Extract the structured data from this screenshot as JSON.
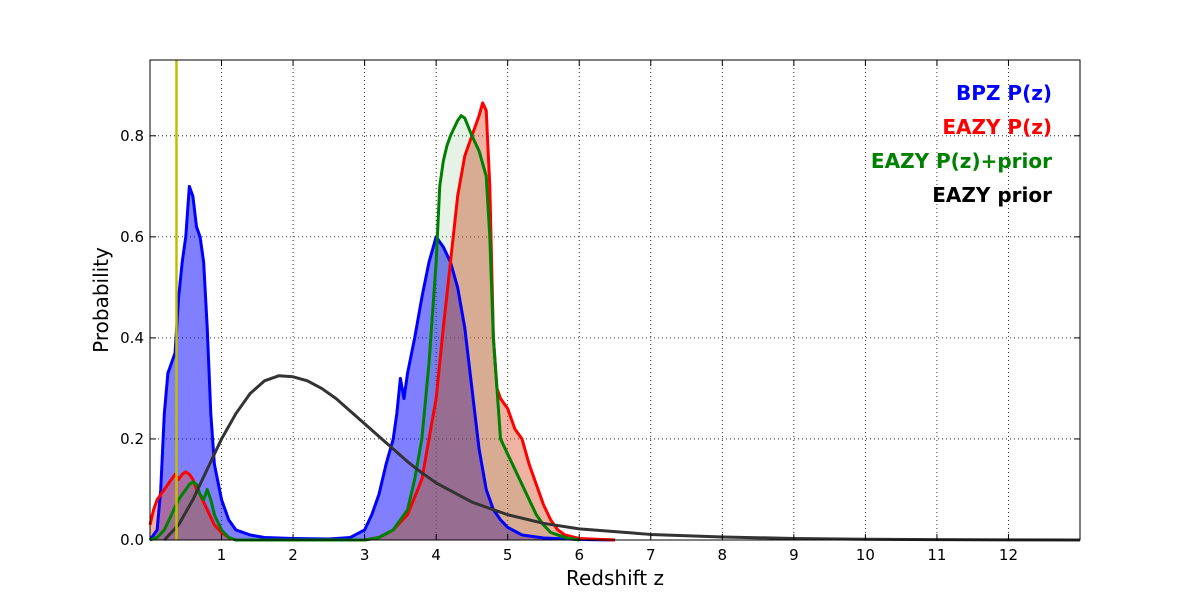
{
  "chart_data": {
    "type": "area",
    "title": "",
    "xlabel": "Redshift z",
    "ylabel": "Probability",
    "xlim": [
      0,
      13
    ],
    "ylim": [
      0,
      0.95
    ],
    "xticks": [
      1,
      2,
      3,
      4,
      5,
      6,
      7,
      8,
      9,
      10,
      11,
      12
    ],
    "xtick_labels": [
      "1",
      "2",
      "3",
      "4",
      "5",
      "6",
      "7",
      "8",
      "9",
      "10",
      "11",
      "12"
    ],
    "yticks": [
      0.0,
      0.2,
      0.4,
      0.6,
      0.8
    ],
    "ytick_labels": [
      "0.0",
      "0.2",
      "0.4",
      "0.6",
      "0.8"
    ],
    "grid": true,
    "legend_position": "top-right",
    "vline": {
      "x": 0.37,
      "color": "#bfbf00"
    },
    "series": [
      {
        "name": "BPZ P(z)",
        "color": "#0000ff",
        "fill": "#0000ff",
        "fill_opacity": 0.5,
        "points": [
          [
            0,
            0.0
          ],
          [
            0.1,
            0.02
          ],
          [
            0.15,
            0.1
          ],
          [
            0.2,
            0.25
          ],
          [
            0.25,
            0.33
          ],
          [
            0.3,
            0.35
          ],
          [
            0.35,
            0.37
          ],
          [
            0.4,
            0.48
          ],
          [
            0.45,
            0.55
          ],
          [
            0.5,
            0.6
          ],
          [
            0.55,
            0.7
          ],
          [
            0.6,
            0.68
          ],
          [
            0.65,
            0.62
          ],
          [
            0.7,
            0.6
          ],
          [
            0.75,
            0.55
          ],
          [
            0.8,
            0.42
          ],
          [
            0.85,
            0.25
          ],
          [
            0.9,
            0.15
          ],
          [
            1.0,
            0.08
          ],
          [
            1.1,
            0.04
          ],
          [
            1.2,
            0.02
          ],
          [
            1.4,
            0.01
          ],
          [
            1.6,
            0.005
          ],
          [
            2.0,
            0.003
          ],
          [
            2.5,
            0.002
          ],
          [
            2.8,
            0.005
          ],
          [
            3.0,
            0.02
          ],
          [
            3.1,
            0.05
          ],
          [
            3.2,
            0.09
          ],
          [
            3.3,
            0.15
          ],
          [
            3.4,
            0.2
          ],
          [
            3.45,
            0.25
          ],
          [
            3.5,
            0.32
          ],
          [
            3.55,
            0.28
          ],
          [
            3.6,
            0.33
          ],
          [
            3.7,
            0.4
          ],
          [
            3.8,
            0.48
          ],
          [
            3.9,
            0.55
          ],
          [
            4.0,
            0.6
          ],
          [
            4.1,
            0.58
          ],
          [
            4.2,
            0.55
          ],
          [
            4.3,
            0.5
          ],
          [
            4.4,
            0.42
          ],
          [
            4.5,
            0.3
          ],
          [
            4.6,
            0.18
          ],
          [
            4.7,
            0.1
          ],
          [
            4.8,
            0.06
          ],
          [
            4.9,
            0.04
          ],
          [
            5.0,
            0.025
          ],
          [
            5.2,
            0.01
          ],
          [
            5.5,
            0.004
          ],
          [
            6.0,
            0.001
          ],
          [
            6.5,
            0.0
          ]
        ]
      },
      {
        "name": "EAZY P(z)",
        "color": "#ff0000",
        "fill": "#dd5533",
        "fill_opacity": 0.45,
        "points": [
          [
            0,
            0.03
          ],
          [
            0.05,
            0.06
          ],
          [
            0.1,
            0.08
          ],
          [
            0.15,
            0.09
          ],
          [
            0.2,
            0.1
          ],
          [
            0.25,
            0.11
          ],
          [
            0.3,
            0.12
          ],
          [
            0.35,
            0.13
          ],
          [
            0.4,
            0.12
          ],
          [
            0.45,
            0.13
          ],
          [
            0.5,
            0.135
          ],
          [
            0.55,
            0.13
          ],
          [
            0.6,
            0.12
          ],
          [
            0.65,
            0.1
          ],
          [
            0.7,
            0.09
          ],
          [
            0.8,
            0.06
          ],
          [
            0.9,
            0.03
          ],
          [
            1.0,
            0.015
          ],
          [
            1.1,
            0.005
          ],
          [
            1.2,
            0.0
          ],
          [
            3.0,
            0.0
          ],
          [
            3.2,
            0.005
          ],
          [
            3.4,
            0.02
          ],
          [
            3.6,
            0.05
          ],
          [
            3.8,
            0.12
          ],
          [
            4.0,
            0.28
          ],
          [
            4.1,
            0.42
          ],
          [
            4.2,
            0.55
          ],
          [
            4.3,
            0.68
          ],
          [
            4.4,
            0.76
          ],
          [
            4.5,
            0.8
          ],
          [
            4.6,
            0.84
          ],
          [
            4.65,
            0.865
          ],
          [
            4.7,
            0.85
          ],
          [
            4.75,
            0.7
          ],
          [
            4.8,
            0.4
          ],
          [
            4.85,
            0.3
          ],
          [
            4.9,
            0.28
          ],
          [
            5.0,
            0.26
          ],
          [
            5.1,
            0.22
          ],
          [
            5.2,
            0.2
          ],
          [
            5.3,
            0.15
          ],
          [
            5.4,
            0.11
          ],
          [
            5.5,
            0.07
          ],
          [
            5.6,
            0.04
          ],
          [
            5.7,
            0.02
          ],
          [
            5.8,
            0.01
          ],
          [
            6.0,
            0.003
          ],
          [
            6.5,
            0.0
          ]
        ]
      },
      {
        "name": "EAZY P(z)+prior",
        "color": "#008000",
        "fill": "#008000",
        "fill_opacity": 0.1,
        "points": [
          [
            0,
            0.0
          ],
          [
            0.1,
            0.005
          ],
          [
            0.2,
            0.02
          ],
          [
            0.3,
            0.05
          ],
          [
            0.4,
            0.08
          ],
          [
            0.5,
            0.1
          ],
          [
            0.55,
            0.11
          ],
          [
            0.6,
            0.115
          ],
          [
            0.65,
            0.11
          ],
          [
            0.7,
            0.09
          ],
          [
            0.75,
            0.08
          ],
          [
            0.8,
            0.1
          ],
          [
            0.85,
            0.08
          ],
          [
            0.9,
            0.05
          ],
          [
            1.0,
            0.02
          ],
          [
            1.1,
            0.005
          ],
          [
            1.2,
            0.0
          ],
          [
            3.0,
            0.0
          ],
          [
            3.2,
            0.005
          ],
          [
            3.4,
            0.02
          ],
          [
            3.6,
            0.06
          ],
          [
            3.7,
            0.12
          ],
          [
            3.8,
            0.2
          ],
          [
            3.9,
            0.35
          ],
          [
            4.0,
            0.55
          ],
          [
            4.05,
            0.7
          ],
          [
            4.1,
            0.75
          ],
          [
            4.15,
            0.78
          ],
          [
            4.2,
            0.8
          ],
          [
            4.3,
            0.83
          ],
          [
            4.35,
            0.84
          ],
          [
            4.4,
            0.835
          ],
          [
            4.5,
            0.8
          ],
          [
            4.6,
            0.77
          ],
          [
            4.7,
            0.72
          ],
          [
            4.75,
            0.6
          ],
          [
            4.8,
            0.4
          ],
          [
            4.9,
            0.2
          ],
          [
            5.0,
            0.17
          ],
          [
            5.1,
            0.14
          ],
          [
            5.2,
            0.11
          ],
          [
            5.3,
            0.08
          ],
          [
            5.4,
            0.05
          ],
          [
            5.5,
            0.03
          ],
          [
            5.6,
            0.015
          ],
          [
            5.8,
            0.005
          ],
          [
            6.0,
            0.0
          ]
        ]
      },
      {
        "name": "EAZY prior",
        "color": "#333333",
        "fill": "none",
        "fill_opacity": 0,
        "points": [
          [
            0.2,
            0.0
          ],
          [
            0.4,
            0.03
          ],
          [
            0.6,
            0.08
          ],
          [
            0.8,
            0.14
          ],
          [
            1.0,
            0.2
          ],
          [
            1.2,
            0.25
          ],
          [
            1.4,
            0.29
          ],
          [
            1.6,
            0.315
          ],
          [
            1.8,
            0.325
          ],
          [
            2.0,
            0.323
          ],
          [
            2.2,
            0.315
          ],
          [
            2.4,
            0.3
          ],
          [
            2.6,
            0.28
          ],
          [
            2.8,
            0.255
          ],
          [
            3.0,
            0.23
          ],
          [
            3.2,
            0.205
          ],
          [
            3.4,
            0.18
          ],
          [
            3.6,
            0.155
          ],
          [
            3.8,
            0.133
          ],
          [
            4.0,
            0.113
          ],
          [
            4.5,
            0.075
          ],
          [
            5.0,
            0.05
          ],
          [
            5.5,
            0.033
          ],
          [
            6.0,
            0.022
          ],
          [
            7.0,
            0.011
          ],
          [
            8.0,
            0.006
          ],
          [
            9.0,
            0.003
          ],
          [
            10.0,
            0.0015
          ],
          [
            11.0,
            0.0007
          ],
          [
            12.0,
            0.0003
          ],
          [
            13.0,
            0.0
          ]
        ]
      }
    ]
  }
}
